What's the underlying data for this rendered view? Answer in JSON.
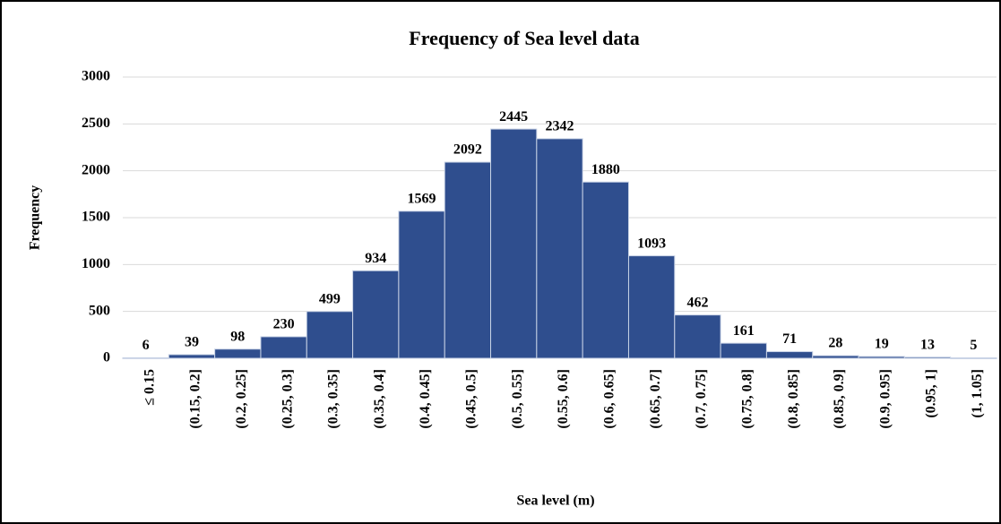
{
  "chart_data": {
    "type": "bar",
    "title": "Frequency of Sea level data",
    "x_label": "Sea level (m)",
    "y_label": "Frequency",
    "categories": [
      "≤ 0.15",
      "(0.15, 0.2]",
      "(0.2, 0.25]",
      "(0.25, 0.3]",
      "(0.3, 0.35]",
      "(0.35, 0.4]",
      "(0.4, 0.45]",
      "(0.45, 0.5]",
      "(0.5, 0.55]",
      "(0.55, 0.6]",
      "(0.6, 0.65]",
      "(0.65, 0.7]",
      "(0.7, 0.75]",
      "(0.75, 0.8]",
      "(0.8, 0.85]",
      "(0.85, 0.9]",
      "(0.9, 0.95]",
      "(0.95, 1]",
      "(1, 1.05]"
    ],
    "values": [
      6,
      39,
      98,
      230,
      499,
      934,
      1569,
      2092,
      2445,
      2342,
      1880,
      1093,
      462,
      161,
      71,
      28,
      19,
      13,
      5
    ],
    "color": "#2f4e8e",
    "ylim": [
      0,
      3000
    ],
    "yticks": [
      0,
      500,
      1000,
      1500,
      2000,
      2500,
      3000
    ],
    "grid": true
  }
}
